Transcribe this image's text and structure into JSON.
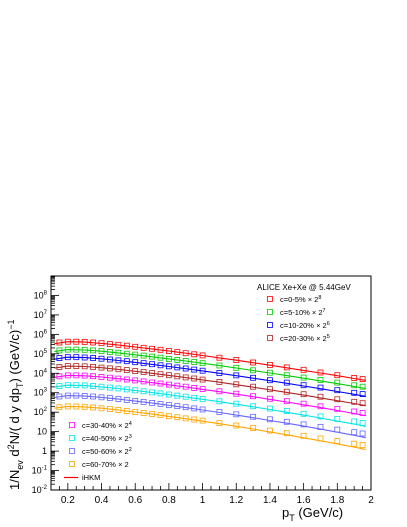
{
  "chart_data": {
    "type": "scatter",
    "title": "",
    "annotation": "ALICE Xe+Xe @ 5.44GeV",
    "xlabel": {
      "base": "p",
      "sub": "T",
      "rest": " (GeV/c)"
    },
    "ylabel": "1/N_ev d^2N/( d y dp_T) (GeV/c)^-1",
    "ylabel_parts": {
      "a": "1/N",
      "a_sub": "ev",
      "b": " d",
      "b_sup": "2",
      "c": "N/( d y dp",
      "c_sub": "T",
      "d": ") (GeV/c)",
      "d_sup": "−1"
    },
    "x_range": [
      0.1,
      2.0
    ],
    "y_range": [
      0.01,
      1000000000
    ],
    "y_scale": "log",
    "x_ticks": [
      "0.2",
      "0.4",
      "0.6",
      "0.8",
      "1",
      "1.2",
      "1.4",
      "1.6",
      "1.8",
      "2"
    ],
    "y_ticks": [
      {
        "base": "10",
        "exp": "-2"
      },
      {
        "base": "10",
        "exp": "-1"
      },
      {
        "base": "1",
        "exp": ""
      },
      {
        "base": "10",
        "exp": ""
      },
      {
        "base": "10",
        "exp": "2"
      },
      {
        "base": "10",
        "exp": "3"
      },
      {
        "base": "10",
        "exp": "4"
      },
      {
        "base": "10",
        "exp": "5"
      },
      {
        "base": "10",
        "exp": "6"
      },
      {
        "base": "10",
        "exp": "7"
      },
      {
        "base": "10",
        "exp": "8"
      }
    ],
    "x": [
      0.15,
      0.2,
      0.25,
      0.3,
      0.35,
      0.4,
      0.45,
      0.5,
      0.55,
      0.6,
      0.65,
      0.7,
      0.75,
      0.8,
      0.85,
      0.9,
      0.95,
      1.0,
      1.1,
      1.2,
      1.3,
      1.4,
      1.5,
      1.6,
      1.7,
      1.8,
      1.9,
      1.95
    ],
    "series": [
      {
        "label": "c=0-5% × 2",
        "label_sup": "8",
        "color": "#ff0000",
        "marker": "open-square",
        "values": [
          380000,
          420000,
          420000,
          410000,
          380000,
          350000,
          320000,
          290000,
          260000,
          230000,
          205000,
          182000,
          160000,
          140000,
          123000,
          108000,
          95000,
          83000,
          63000,
          48000,
          36000,
          27000,
          20000,
          15000,
          11000,
          8000,
          5800,
          5000
        ]
      },
      {
        "label": "c=5-10% × 2",
        "label_sup": "7",
        "color": "#00cc00",
        "marker": "open-square",
        "values": [
          150000,
          165000,
          165000,
          160000,
          150000,
          138000,
          126000,
          114000,
          102000,
          91000,
          81000,
          72000,
          63000,
          55000,
          48500,
          42500,
          37500,
          33000,
          25000,
          19000,
          14200,
          10700,
          8000,
          6000,
          4500,
          3300,
          2400,
          2050
        ]
      },
      {
        "label": "c=10-20% × 2",
        "label_sup": "6",
        "color": "#0000ff",
        "marker": "open-square",
        "values": [
          60000,
          67000,
          67000,
          65000,
          61000,
          56000,
          51000,
          46000,
          41500,
          37000,
          33000,
          29200,
          25800,
          22800,
          20000,
          17600,
          15500,
          13600,
          10300,
          7800,
          5850,
          4400,
          3300,
          2450,
          1830,
          1350,
          990,
          850
        ]
      },
      {
        "label": "c=20-30% × 2",
        "label_sup": "5",
        "color": "#b22222",
        "marker": "open-square",
        "values": [
          21000,
          23500,
          23500,
          22800,
          21300,
          19600,
          17800,
          16100,
          14500,
          12900,
          11500,
          10200,
          9000,
          7950,
          7000,
          6150,
          5400,
          4750,
          3600,
          2700,
          2030,
          1520,
          1130,
          840,
          625,
          460,
          340,
          290
        ]
      },
      {
        "label": "c=30-40% × 2",
        "label_sup": "4",
        "color": "#ff00ff",
        "marker": "open-square",
        "values": [
          7000,
          7800,
          7800,
          7550,
          7050,
          6500,
          5900,
          5350,
          4800,
          4280,
          3800,
          3370,
          2980,
          2630,
          2310,
          2030,
          1780,
          1560,
          1180,
          890,
          665,
          495,
          368,
          272,
          201,
          148,
          108,
          92
        ]
      },
      {
        "label": "c=40-50% × 2",
        "label_sup": "3",
        "color": "#00e5e5",
        "marker": "open-square",
        "values": [
          2200,
          2450,
          2450,
          2370,
          2210,
          2030,
          1840,
          1660,
          1490,
          1330,
          1180,
          1045,
          925,
          815,
          715,
          628,
          550,
          482,
          364,
          273,
          204,
          152,
          113,
          83,
          61,
          45,
          33,
          28
        ]
      },
      {
        "label": "c=50-60% × 2",
        "label_sup": "2",
        "color": "#6666ff",
        "marker": "open-square",
        "values": [
          640,
          710,
          710,
          685,
          638,
          585,
          530,
          478,
          428,
          382,
          339,
          300,
          265,
          233,
          205,
          180,
          157,
          138,
          104,
          78,
          58,
          43,
          32,
          23.5,
          17.3,
          12.7,
          9.3,
          8
        ]
      },
      {
        "label": "c=60-70% × 2",
        "label_sup": "",
        "color": "#ffa500",
        "marker": "open-square",
        "values": [
          180,
          198,
          196,
          188,
          174,
          159,
          144,
          129,
          115.5,
          102.5,
          91,
          80.5,
          71,
          62.5,
          55,
          48,
          42,
          36.8,
          27.6,
          20.6,
          15.3,
          11.3,
          8.3,
          6.1,
          4.5,
          3.3,
          2.4,
          2.05
        ]
      }
    ],
    "model": {
      "label": "iHKM",
      "color": "#ff0000",
      "x": [
        0.12,
        0.2,
        0.3,
        0.4,
        0.5,
        0.6,
        0.7,
        0.8,
        0.9,
        1.0,
        1.1,
        1.2,
        1.3,
        1.4,
        1.5,
        1.6,
        1.7,
        1.8,
        1.9,
        1.97
      ],
      "curves": [
        {
          "color": "#ff0000",
          "values": [
            330000,
            420000,
            400000,
            345000,
            283000,
            225000,
            178000,
            139000,
            107000,
            82000,
            62000,
            47000,
            35000,
            26000,
            19200,
            14100,
            10300,
            7500,
            5400,
            4300
          ]
        },
        {
          "color": "#00cc00",
          "values": [
            130000,
            165000,
            158000,
            136000,
            112000,
            89000,
            70500,
            55000,
            42500,
            32500,
            24700,
            18600,
            13900,
            10300,
            7600,
            5550,
            4050,
            2930,
            2100,
            1650
          ]
        },
        {
          "color": "#0000ff",
          "values": [
            53000,
            67000,
            64000,
            55500,
            45500,
            36200,
            28600,
            22200,
            17200,
            13200,
            10000,
            7500,
            5600,
            4150,
            3050,
            2220,
            1610,
            1160,
            830,
            650
          ]
        },
        {
          "color": "#b22222",
          "values": [
            18500,
            23500,
            22400,
            19400,
            15900,
            12600,
            9950,
            7750,
            5980,
            4570,
            3460,
            2590,
            1930,
            1420,
            1040,
            755,
            545,
            390,
            278,
            216
          ]
        },
        {
          "color": "#ff00ff",
          "values": [
            6200,
            7800,
            7400,
            6400,
            5250,
            4160,
            3280,
            2550,
            1960,
            1490,
            1125,
            840,
            622,
            456,
            332,
            240,
            172,
            122,
            86,
            66
          ]
        },
        {
          "color": "#00e5e5",
          "values": [
            1950,
            2450,
            2320,
            2000,
            1640,
            1300,
            1020,
            790,
            605,
            458,
            344,
            256,
            188,
            137,
            99,
            71,
            50,
            35,
            24.5,
            18.5
          ]
        },
        {
          "color": "#6666ff",
          "values": [
            570,
            710,
            670,
            577,
            472,
            373,
            292,
            225,
            172,
            129,
            96,
            71,
            52,
            37.5,
            27,
            19.2,
            13.5,
            9.4,
            6.5,
            4.9
          ]
        },
        {
          "color": "#ffa500",
          "values": [
            160,
            198,
            186,
            160,
            130,
            102,
            79.5,
            61,
            46,
            34.5,
            25.5,
            18.7,
            13.6,
            9.7,
            6.9,
            4.85,
            3.38,
            2.33,
            1.6,
            1.2
          ]
        }
      ]
    },
    "legend_top_position": "top-right",
    "legend_bottom_position": "bottom-left",
    "grid": false
  }
}
